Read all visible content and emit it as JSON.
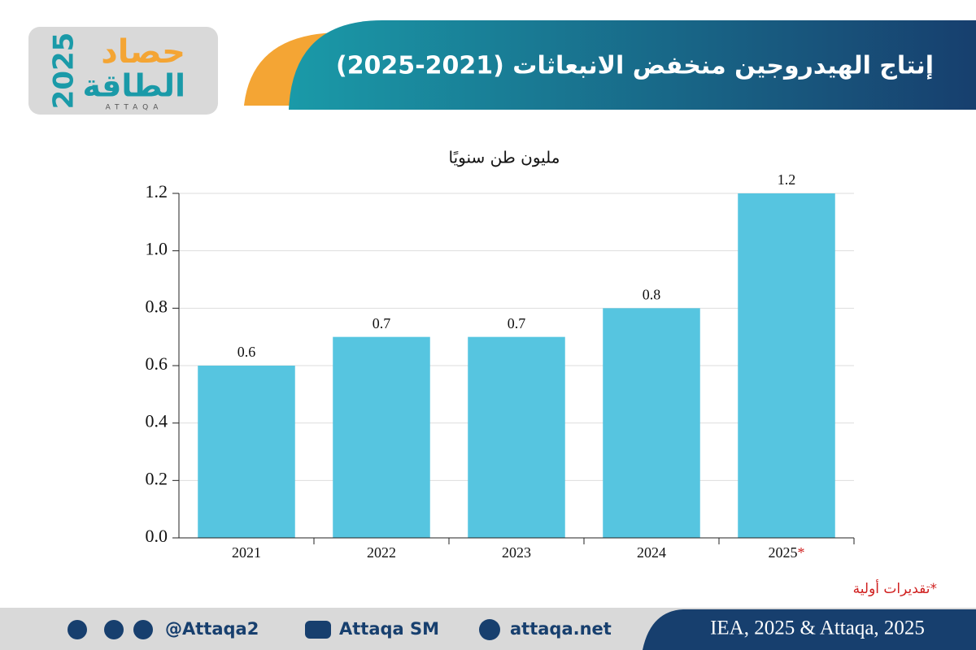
{
  "header": {
    "title": "إنتاج الهيدروجين منخفض الانبعاثات (2021-2025)",
    "logo": {
      "word1": "حصاد",
      "word2": "الطاقة",
      "year": "2025",
      "brand": "ATTAQA"
    }
  },
  "chart_data": {
    "type": "bar",
    "unit_label": "مليون طن سنويًا",
    "categories": [
      "2021",
      "2022",
      "2023",
      "2024",
      "2025*"
    ],
    "values": [
      0.6,
      0.7,
      0.7,
      0.8,
      1.2
    ],
    "color": "#56c5e0",
    "ylim": [
      0,
      1.2
    ],
    "yticks": [
      {
        "value": 0,
        "label": "0.0"
      },
      0.2,
      0.4,
      0.6,
      0.8,
      {
        "value": 1,
        "label": "1.0"
      },
      1.2
    ],
    "grid": true
  },
  "footnote": "*تقديرات أولية",
  "footer": {
    "social": "@Attaqa2",
    "youtube": "Attaqa SM",
    "website": "attaqa.net",
    "source": "IEA, 2025 & Attaqa, 2025"
  }
}
